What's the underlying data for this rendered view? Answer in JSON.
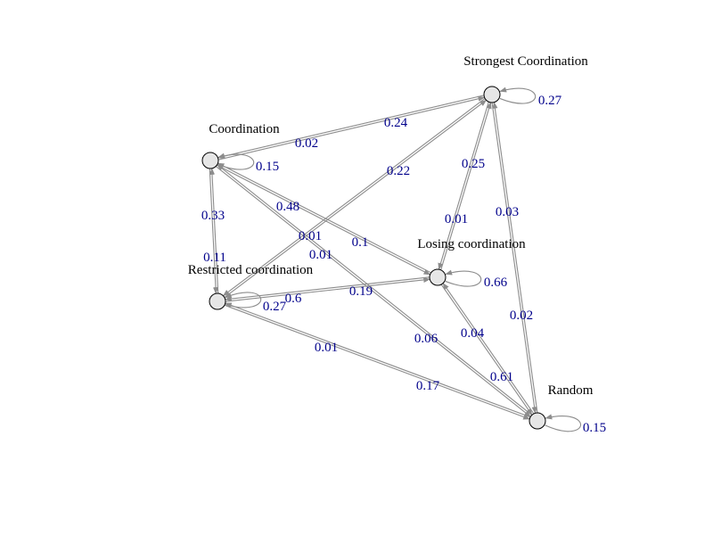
{
  "graph": {
    "nodes": [
      {
        "id": "strongest",
        "label": "Strongest Coordination"
      },
      {
        "id": "coordination",
        "label": "Coordination"
      },
      {
        "id": "losing",
        "label": "Losing coordination"
      },
      {
        "id": "restricted",
        "label": "Restricted coordination"
      },
      {
        "id": "random",
        "label": "Random"
      }
    ],
    "edges": [
      {
        "from": "strongest",
        "to": "strongest",
        "weight": "0.27"
      },
      {
        "from": "coordination",
        "to": "coordination",
        "weight": "0.15"
      },
      {
        "from": "losing",
        "to": "losing",
        "weight": "0.66"
      },
      {
        "from": "restricted",
        "to": "restricted",
        "weight": "0.27"
      },
      {
        "from": "random",
        "to": "random",
        "weight": "0.15"
      },
      {
        "from": "strongest",
        "to": "coordination",
        "weight": "0.02"
      },
      {
        "from": "coordination",
        "to": "strongest",
        "weight": "0.24"
      },
      {
        "from": "restricted",
        "to": "strongest",
        "weight": "0.22"
      },
      {
        "from": "coordination",
        "to": "losing",
        "weight": "0.48"
      },
      {
        "from": "losing",
        "to": "coordination",
        "weight": "0.1"
      },
      {
        "from": "restricted",
        "to": "coordination",
        "weight": "0.33"
      },
      {
        "from": "coordination",
        "to": "restricted",
        "weight": "0.11"
      },
      {
        "from": "strongest",
        "to": "losing",
        "weight": "0.25"
      },
      {
        "from": "losing",
        "to": "strongest",
        "weight": "0.01"
      },
      {
        "from": "strongest",
        "to": "random",
        "weight": "0.03"
      },
      {
        "from": "random",
        "to": "strongest",
        "weight": "0.02"
      },
      {
        "from": "coordination",
        "to": "random",
        "weight": "0.01"
      },
      {
        "from": "random",
        "to": "coordination",
        "weight": "0.06"
      },
      {
        "from": "strongest",
        "to": "restricted",
        "weight": "0.01"
      },
      {
        "from": "losing",
        "to": "restricted",
        "weight": "0.6"
      },
      {
        "from": "restricted",
        "to": "losing",
        "weight": "0.19"
      },
      {
        "from": "losing",
        "to": "random",
        "weight": "0.04"
      },
      {
        "from": "random",
        "to": "losing",
        "weight": "0.61"
      },
      {
        "from": "restricted",
        "to": "random",
        "weight": "0.01"
      },
      {
        "from": "random",
        "to": "restricted",
        "weight": "0.17"
      }
    ]
  },
  "colors": {
    "edge": "#8c8c8c",
    "node_fill": "#e6e6e6",
    "node_stroke": "#000000",
    "edge_label": "#00008b",
    "node_label": "#000000"
  }
}
